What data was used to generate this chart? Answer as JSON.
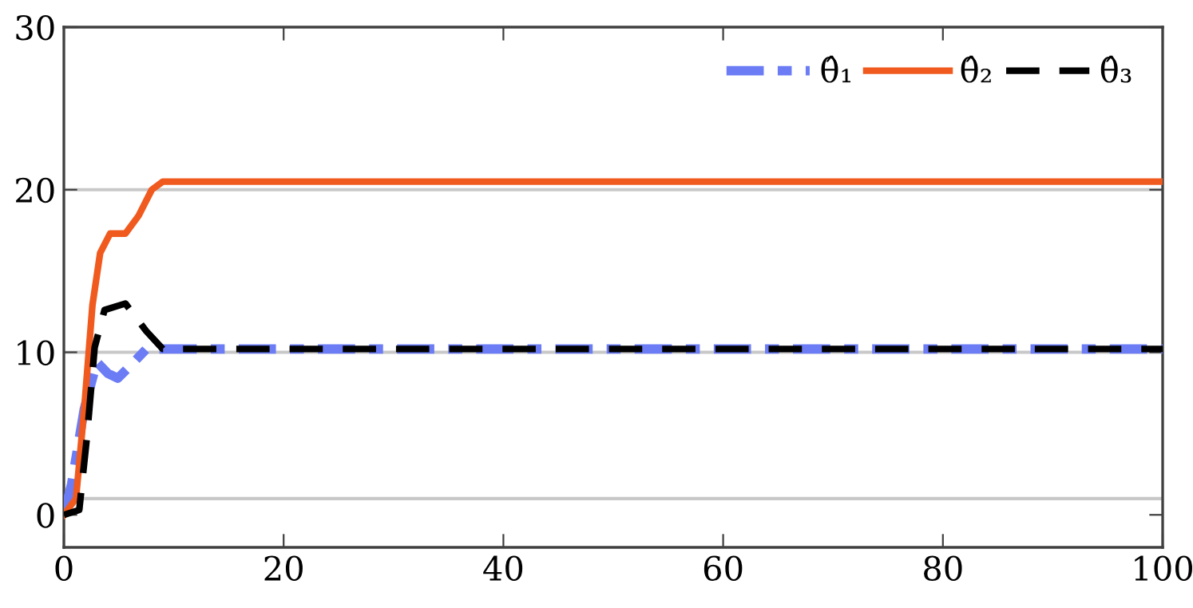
{
  "chart_data": {
    "type": "line",
    "xlim": [
      0,
      100
    ],
    "ylim": [
      -2,
      30
    ],
    "xticks": [
      0,
      20,
      40,
      60,
      80,
      100
    ],
    "yticks": [
      0,
      10,
      20,
      30
    ],
    "legend": "top right",
    "grid": false,
    "ref_lines": [
      {
        "axis": "y",
        "value": 1,
        "color": "#c8c8c8"
      },
      {
        "axis": "y",
        "value": 10,
        "color": "#c8c8c8"
      },
      {
        "axis": "y",
        "value": 20,
        "color": "#c8c8c8"
      }
    ],
    "series": [
      {
        "name": "θ̂₁",
        "color": "#6b7cf5",
        "line_style": "dashdot",
        "x": [
          0,
          0.7,
          1.85,
          3,
          4,
          4.9,
          6.1,
          7.5,
          9,
          100
        ],
        "values": [
          0,
          1.9,
          6.5,
          9.4,
          8.7,
          8.4,
          9.2,
          10.2,
          10.2,
          10.2
        ]
      },
      {
        "name": "θ̂₂",
        "color": "#f05a1e",
        "line_style": "solid",
        "x": [
          0,
          1.1,
          1.85,
          2.6,
          3.3,
          4.2,
          5.6,
          6.8,
          8,
          9,
          100
        ],
        "values": [
          0,
          1,
          6.5,
          12.9,
          16.1,
          17.3,
          17.3,
          18.4,
          20,
          20.5,
          20.5
        ]
      },
      {
        "name": "θ̂₃",
        "color": "#000000",
        "line_style": "dashed",
        "x": [
          0,
          1.4,
          2.1,
          2.8,
          3.7,
          5.6,
          7.5,
          9,
          100
        ],
        "values": [
          0,
          0.3,
          4.8,
          10.3,
          12.6,
          13,
          11.3,
          10.2,
          10.2
        ]
      }
    ]
  }
}
